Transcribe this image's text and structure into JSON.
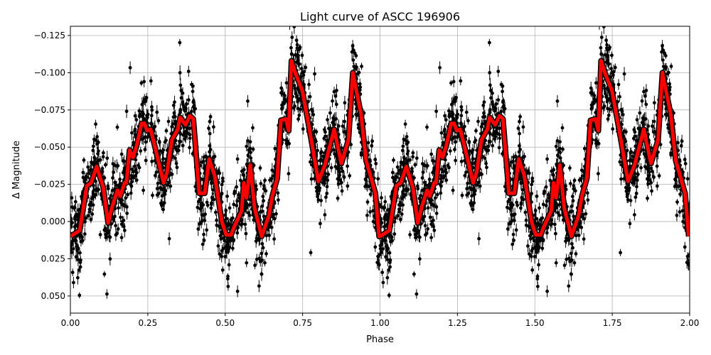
{
  "chart_data": {
    "type": "scatter",
    "title": "Light curve of ASCC 196906",
    "xlabel": "Phase",
    "ylabel": "Δ Magnitude",
    "xlim": [
      0.0,
      2.0
    ],
    "ylim": [
      0.0615,
      -0.1312
    ],
    "y_inverted": true,
    "grid": true,
    "x_ticks": [
      "0.00",
      "0.25",
      "0.50",
      "0.75",
      "1.00",
      "1.25",
      "1.50",
      "1.75",
      "2.00"
    ],
    "y_ticks": [
      "−0.125",
      "−0.100",
      "−0.075",
      "−0.050",
      "−0.025",
      "0.000",
      "0.025",
      "0.050"
    ],
    "y_tick_values": [
      -0.125,
      -0.1,
      -0.075,
      -0.05,
      -0.025,
      0,
      0.025,
      0.05
    ],
    "points_color": "#000000",
    "model_color": "#ff0000",
    "model_period_phase": 1.0,
    "model_curve": {
      "phase": [
        0.0,
        0.03,
        0.053,
        0.067,
        0.085,
        0.106,
        0.122,
        0.135,
        0.152,
        0.161,
        0.175,
        0.181,
        0.191,
        0.202,
        0.214,
        0.23,
        0.239,
        0.248,
        0.259,
        0.271,
        0.301,
        0.312,
        0.328,
        0.347,
        0.354,
        0.372,
        0.386,
        0.397,
        0.416,
        0.434,
        0.448,
        0.466,
        0.489,
        0.503,
        0.519,
        0.53,
        0.553,
        0.56,
        0.569,
        0.581,
        0.595,
        0.618,
        0.641,
        0.652,
        0.668,
        0.68,
        0.696,
        0.705,
        0.714,
        0.728,
        0.749,
        0.772,
        0.801,
        0.822,
        0.852,
        0.875,
        0.898,
        0.912,
        0.939,
        0.955,
        0.985,
        0.997
      ],
      "delta_mag": [
        0.01,
        0.006,
        -0.024,
        -0.026,
        -0.037,
        -0.023,
        0.001,
        -0.01,
        -0.021,
        -0.017,
        -0.026,
        -0.026,
        -0.048,
        -0.043,
        -0.051,
        -0.066,
        -0.066,
        -0.061,
        -0.062,
        -0.052,
        -0.026,
        -0.033,
        -0.055,
        -0.062,
        -0.07,
        -0.065,
        -0.071,
        -0.069,
        -0.019,
        -0.019,
        -0.042,
        -0.031,
        0.0,
        0.009,
        0.009,
        0.003,
        -0.007,
        -0.026,
        -0.016,
        -0.038,
        -0.009,
        0.01,
        -0.004,
        -0.017,
        -0.029,
        -0.068,
        -0.069,
        -0.061,
        -0.108,
        -0.099,
        -0.088,
        -0.062,
        -0.027,
        -0.038,
        -0.062,
        -0.039,
        -0.055,
        -0.1,
        -0.072,
        -0.041,
        -0.019,
        0.01
      ]
    }
  }
}
